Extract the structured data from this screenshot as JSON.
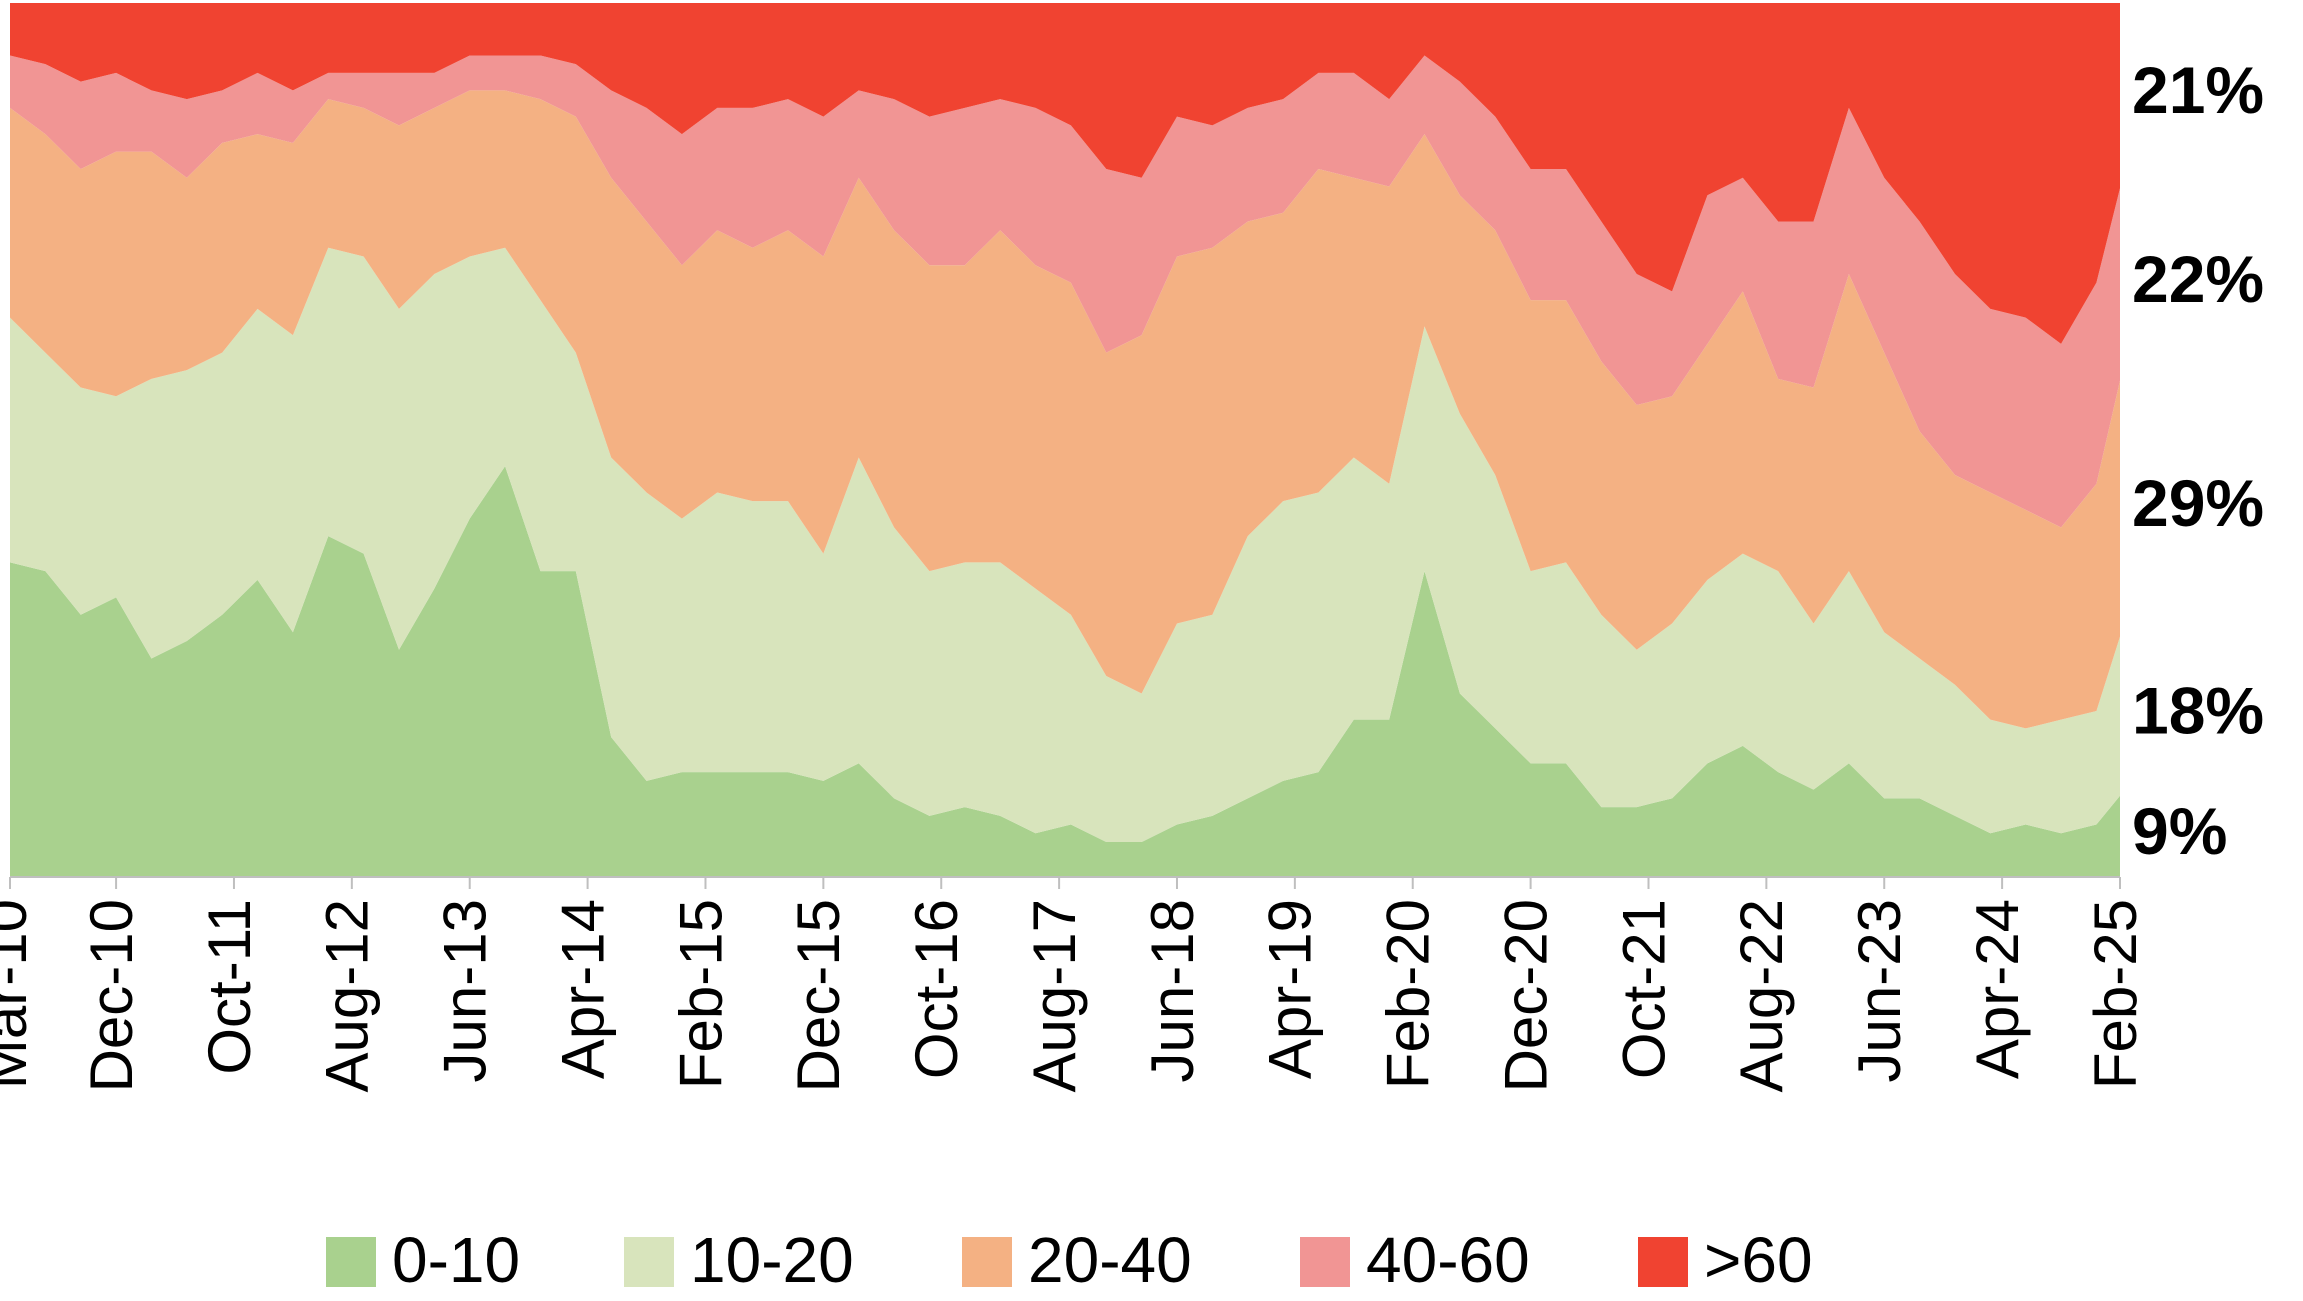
{
  "chart_data": {
    "type": "stacked_area",
    "x": [
      0,
      3,
      6,
      9,
      12,
      15,
      18,
      21,
      24,
      27,
      30,
      33,
      36,
      39,
      42,
      45,
      48,
      51,
      54,
      57,
      60,
      63,
      66,
      69,
      72,
      75,
      78,
      81,
      84,
      87,
      90,
      93,
      96,
      99,
      102,
      105,
      108,
      111,
      114,
      117,
      120,
      123,
      126,
      129,
      132,
      135,
      138,
      141,
      144,
      147,
      150,
      153,
      156,
      159,
      162,
      165,
      168,
      171,
      174,
      177,
      179
    ],
    "xlim": [
      0,
      179
    ],
    "xticks": [
      {
        "value": 0,
        "label": "Mar-10"
      },
      {
        "value": 9,
        "label": "Dec-10"
      },
      {
        "value": 19,
        "label": "Oct-11"
      },
      {
        "value": 29,
        "label": "Aug-12"
      },
      {
        "value": 39,
        "label": "Jun-13"
      },
      {
        "value": 49,
        "label": "Apr-14"
      },
      {
        "value": 59,
        "label": "Feb-15"
      },
      {
        "value": 69,
        "label": "Dec-15"
      },
      {
        "value": 79,
        "label": "Oct-16"
      },
      {
        "value": 89,
        "label": "Aug-17"
      },
      {
        "value": 99,
        "label": "Jun-18"
      },
      {
        "value": 109,
        "label": "Apr-19"
      },
      {
        "value": 119,
        "label": "Feb-20"
      },
      {
        "value": 129,
        "label": "Dec-20"
      },
      {
        "value": 139,
        "label": "Oct-21"
      },
      {
        "value": 149,
        "label": "Aug-22"
      },
      {
        "value": 159,
        "label": "Jun-23"
      },
      {
        "value": 169,
        "label": "Apr-24"
      },
      {
        "value": 179,
        "label": "Feb-25"
      }
    ],
    "ylim": [
      0,
      100
    ],
    "legend": "bottom",
    "series": [
      {
        "name": "0-10",
        "color": "#a9d18e",
        "end_label": "9%",
        "values": [
          36,
          35,
          30,
          32,
          25,
          27,
          30,
          34,
          28,
          39,
          37,
          26,
          33,
          41,
          47,
          35,
          35,
          16,
          11,
          12,
          12,
          12,
          12,
          11,
          13,
          9,
          7,
          8,
          7,
          5,
          6,
          4,
          4,
          6,
          7,
          9,
          11,
          12,
          18,
          18,
          35,
          21,
          17,
          13,
          13,
          8,
          8,
          9,
          13,
          15,
          12,
          10,
          13,
          9,
          9,
          7,
          5,
          6,
          5,
          6,
          9.3
        ]
      },
      {
        "name": "10-20",
        "color": "#d8e4bc",
        "end_label": "18%",
        "values": [
          28,
          25,
          26,
          23,
          32,
          31,
          30,
          31,
          34,
          33,
          34,
          39,
          36,
          30,
          25,
          31,
          25,
          32,
          33,
          29,
          32,
          31,
          31,
          26,
          35,
          31,
          28,
          28,
          29,
          28,
          24,
          19,
          17,
          23,
          23,
          30,
          32,
          32,
          30,
          27,
          28,
          32,
          29,
          22,
          23,
          22,
          18,
          20,
          21,
          22,
          23,
          19,
          22,
          19,
          16,
          15,
          13,
          11,
          13,
          13,
          18.2
        ]
      },
      {
        "name": "20-40",
        "color": "#f4b183",
        "end_label": "29%",
        "values": [
          24,
          25,
          25,
          28,
          26,
          22,
          24,
          20,
          22,
          17,
          17,
          21,
          19,
          19,
          18,
          23,
          27,
          32,
          31,
          29,
          30,
          29,
          31,
          34,
          32,
          34,
          35,
          34,
          38,
          37,
          38,
          37,
          41,
          42,
          42,
          36,
          33,
          37,
          32,
          34,
          22,
          25,
          28,
          31,
          30,
          29,
          28,
          26,
          27,
          30,
          22,
          27,
          34,
          32,
          26,
          24,
          26,
          25,
          22,
          26,
          29.3
        ]
      },
      {
        "name": "40-60",
        "color": "#f19594",
        "end_label": "22%",
        "values": [
          6,
          8,
          10,
          9,
          7,
          9,
          6,
          7,
          6,
          3,
          4,
          6,
          4,
          4,
          4,
          5,
          6,
          10,
          13,
          15,
          14,
          16,
          15,
          16,
          10,
          15,
          17,
          18,
          15,
          18,
          18,
          21,
          18,
          16,
          14,
          13,
          13,
          11,
          12,
          10,
          9,
          13,
          13,
          15,
          15,
          16,
          15,
          12,
          17,
          13,
          18,
          19,
          19,
          20,
          24,
          23,
          21,
          22,
          21,
          23,
          22
        ]
      },
      {
        "name": ">60",
        "color": "#f04331",
        "end_label": "21%",
        "values": [
          6,
          7,
          9,
          8,
          10,
          11,
          10,
          8,
          10,
          8,
          8,
          8,
          8,
          6,
          6,
          6,
          7,
          10,
          12,
          15,
          12,
          12,
          11,
          13,
          10,
          11,
          13,
          12,
          11,
          12,
          14,
          19,
          20,
          13,
          14,
          12,
          11,
          8,
          8,
          11,
          6,
          9,
          13,
          19,
          19,
          25,
          31,
          33,
          22,
          20,
          25,
          25,
          12,
          20,
          25,
          31,
          35,
          36,
          39,
          32,
          21.2
        ]
      }
    ]
  }
}
